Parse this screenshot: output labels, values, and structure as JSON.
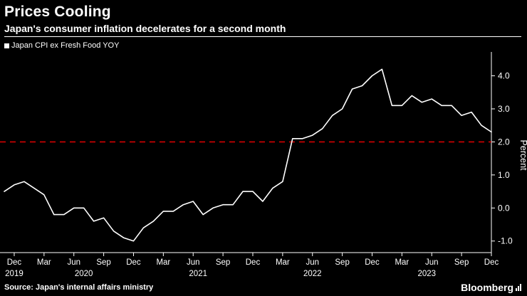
{
  "header": {
    "title": "Prices Cooling",
    "subtitle": "Japan's consumer inflation decelerates for a second month"
  },
  "legend": {
    "label": "Japan CPI ex Fresh Food YOY",
    "marker_color": "#ffffff"
  },
  "footer": {
    "source": "Source: Japan's internal affairs ministry",
    "brand": "Bloomberg"
  },
  "colors": {
    "background": "#000000",
    "text": "#ffffff",
    "series_line": "#ffffff",
    "reference_line": "#d40000"
  },
  "chart_data": {
    "type": "line",
    "title": "Prices Cooling",
    "subtitle": "Japan's consumer inflation decelerates for a second month",
    "frequency": "monthly",
    "x_start": "2019-11",
    "x_end": "2023-12",
    "series": [
      {
        "name": "Japan CPI ex Fresh Food YOY",
        "color": "#ffffff",
        "values": [
          0.5,
          0.7,
          0.8,
          0.6,
          0.4,
          -0.2,
          -0.2,
          0.0,
          0.0,
          -0.4,
          -0.3,
          -0.7,
          -0.9,
          -1.0,
          -0.6,
          -0.4,
          -0.1,
          -0.1,
          0.1,
          0.2,
          -0.2,
          0.0,
          0.1,
          0.1,
          0.5,
          0.5,
          0.2,
          0.6,
          0.8,
          2.1,
          2.1,
          2.2,
          2.4,
          2.8,
          3.0,
          3.6,
          3.7,
          4.0,
          4.2,
          3.1,
          3.1,
          3.4,
          3.2,
          3.3,
          3.1,
          3.1,
          2.8,
          2.9,
          2.5,
          2.3
        ]
      }
    ],
    "reference_line": {
      "value": 2.0,
      "color": "#d40000",
      "style": "dashed"
    },
    "ylabel": "Percent",
    "ylim": [
      -1.35,
      4.55
    ],
    "yticks": [
      4.0,
      3.0,
      2.0,
      1.0,
      0.0,
      -1.0
    ],
    "ytick_labels": [
      "4.0",
      "3.0",
      "2.0",
      "1.0",
      "0.0",
      "-1.0"
    ],
    "xticks": [
      {
        "index": 1,
        "label": "Dec"
      },
      {
        "index": 4,
        "label": "Mar"
      },
      {
        "index": 7,
        "label": "Jun"
      },
      {
        "index": 10,
        "label": "Sep"
      },
      {
        "index": 13,
        "label": "Dec"
      },
      {
        "index": 16,
        "label": "Mar"
      },
      {
        "index": 19,
        "label": "Jun"
      },
      {
        "index": 22,
        "label": "Sep"
      },
      {
        "index": 25,
        "label": "Dec"
      },
      {
        "index": 28,
        "label": "Mar"
      },
      {
        "index": 31,
        "label": "Jun"
      },
      {
        "index": 34,
        "label": "Sep"
      },
      {
        "index": 37,
        "label": "Dec"
      },
      {
        "index": 40,
        "label": "Mar"
      },
      {
        "index": 43,
        "label": "Jun"
      },
      {
        "index": 46,
        "label": "Sep"
      },
      {
        "index": 49,
        "label": "Dec"
      }
    ],
    "year_ticks": [
      {
        "index": 1,
        "label": "2019"
      },
      {
        "index": 8,
        "label": "2020"
      },
      {
        "index": 19.5,
        "label": "2021"
      },
      {
        "index": 31,
        "label": "2022"
      },
      {
        "index": 42.5,
        "label": "2023"
      }
    ],
    "grid": false,
    "legend_position": "top-left",
    "yaxis_position": "right"
  }
}
